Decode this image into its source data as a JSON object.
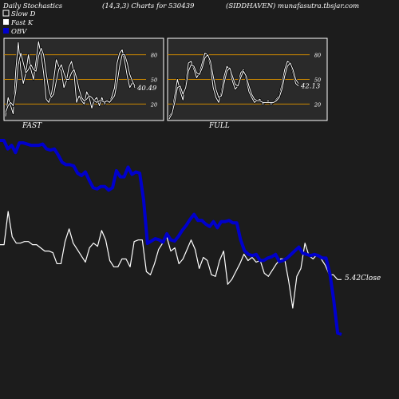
{
  "header": {
    "title_left": "Daily Stochastics",
    "title_mid": "(14,3,3) Charts for 530439",
    "title_right": "(SIDDHAVEN) munafasutra.tbsjar.com"
  },
  "legend": [
    {
      "label": "Slow  D",
      "color": "#ffffff",
      "swatch": "outline"
    },
    {
      "label": "Fast K",
      "color": "#ffffff",
      "swatch": "filled"
    },
    {
      "label": "OBV",
      "color": "#0000cc",
      "swatch": "filled"
    }
  ],
  "colors": {
    "background": "#1c1c1c",
    "panel": "#2a2a2a",
    "refline": "#cc8800",
    "obv": "#0000cc",
    "close": "#ffffff"
  },
  "chart_data": [
    {
      "type": "line",
      "panel": "FAST",
      "title": "FAST",
      "ylim": [
        0,
        100
      ],
      "yticks": [
        20,
        50,
        80
      ],
      "reference_lines": [
        20,
        50,
        80
      ],
      "last_value_label": "40.49",
      "series": [
        {
          "name": "Fast K",
          "values": [
            5,
            28,
            18,
            8,
            60,
            95,
            62,
            45,
            58,
            80,
            62,
            50,
            72,
            96,
            80,
            58,
            26,
            22,
            30,
            50,
            74,
            66,
            60,
            40,
            48,
            65,
            72,
            58,
            22,
            30,
            24,
            20,
            35,
            28,
            15,
            25,
            28,
            18,
            28,
            20,
            24,
            22,
            30,
            40,
            70,
            82,
            86,
            72,
            54,
            40,
            46,
            40
          ]
        },
        {
          "name": "Slow  D",
          "values": [
            10,
            18,
            22,
            18,
            35,
            68,
            82,
            70,
            58,
            62,
            68,
            62,
            60,
            78,
            88,
            80,
            58,
            38,
            28,
            32,
            48,
            62,
            68,
            58,
            50,
            50,
            58,
            62,
            52,
            38,
            28,
            24,
            26,
            30,
            28,
            24,
            22,
            24,
            24,
            22,
            24,
            22,
            26,
            30,
            46,
            66,
            80,
            80,
            70,
            56,
            48,
            42
          ]
        }
      ]
    },
    {
      "type": "line",
      "panel": "FULL",
      "title": "FULL",
      "ylim": [
        0,
        100
      ],
      "yticks": [
        20,
        50,
        80
      ],
      "reference_lines": [
        20,
        50,
        80
      ],
      "last_value_label": "42.13",
      "series": [
        {
          "name": "Fast K",
          "values": [
            5,
            10,
            30,
            50,
            36,
            25,
            45,
            70,
            72,
            62,
            52,
            58,
            70,
            82,
            80,
            66,
            40,
            28,
            22,
            35,
            54,
            66,
            62,
            48,
            38,
            42,
            58,
            62,
            50,
            35,
            28,
            22,
            24,
            26,
            20,
            22,
            24,
            20,
            22,
            26,
            30,
            44,
            62,
            72,
            70,
            58,
            45,
            42
          ]
        },
        {
          "name": "Slow  D",
          "values": [
            2,
            8,
            22,
            40,
            42,
            32,
            40,
            60,
            68,
            66,
            58,
            56,
            64,
            76,
            80,
            72,
            54,
            38,
            28,
            30,
            46,
            60,
            64,
            54,
            44,
            42,
            52,
            60,
            54,
            42,
            32,
            26,
            24,
            24,
            22,
            22,
            22,
            22,
            22,
            24,
            28,
            38,
            54,
            66,
            70,
            62,
            50,
            45
          ]
        }
      ]
    },
    {
      "type": "line",
      "panel": "main",
      "last_value_label": "5.42Close",
      "series": [
        {
          "name": "Close",
          "values": [
            40,
            40,
            61,
            45,
            41,
            41,
            42,
            42,
            40,
            40,
            38,
            36,
            36,
            35,
            28,
            28,
            42,
            50,
            41,
            37,
            33,
            29,
            38,
            41,
            39,
            49,
            43,
            30,
            26,
            26,
            31,
            31,
            26,
            42,
            43,
            43,
            23,
            21,
            28,
            37,
            41,
            45,
            36,
            38,
            28,
            31,
            37,
            43,
            37,
            25,
            32,
            30,
            21,
            20,
            30,
            36,
            15,
            18,
            23,
            28,
            34,
            30,
            32,
            29,
            30,
            22,
            20,
            24,
            28,
            31,
            31,
            17,
            0,
            20,
            25,
            41,
            33,
            31,
            34,
            31,
            27,
            21,
            21,
            18,
            18
          ]
        },
        {
          "name": "OBV",
          "values": [
            100,
            100,
            93,
            96,
            90,
            98,
            98,
            97,
            96,
            96,
            96,
            97,
            93,
            92,
            93,
            88,
            82,
            80,
            80,
            79,
            73,
            71,
            74,
            67,
            61,
            60,
            62,
            62,
            59,
            61,
            75,
            70,
            70,
            78,
            72,
            74,
            73,
            51,
            15,
            17,
            19,
            18,
            16,
            23,
            18,
            17,
            21,
            26,
            30,
            35,
            39,
            34,
            34,
            31,
            29,
            33,
            28,
            33,
            33,
            34,
            32,
            32,
            18,
            9,
            6,
            5,
            6,
            1,
            1,
            3,
            4,
            6,
            0,
            1,
            3,
            6,
            9,
            12,
            7,
            6,
            5,
            6,
            5,
            3,
            3,
            -10,
            -32,
            -59,
            -60
          ]
        }
      ]
    }
  ]
}
